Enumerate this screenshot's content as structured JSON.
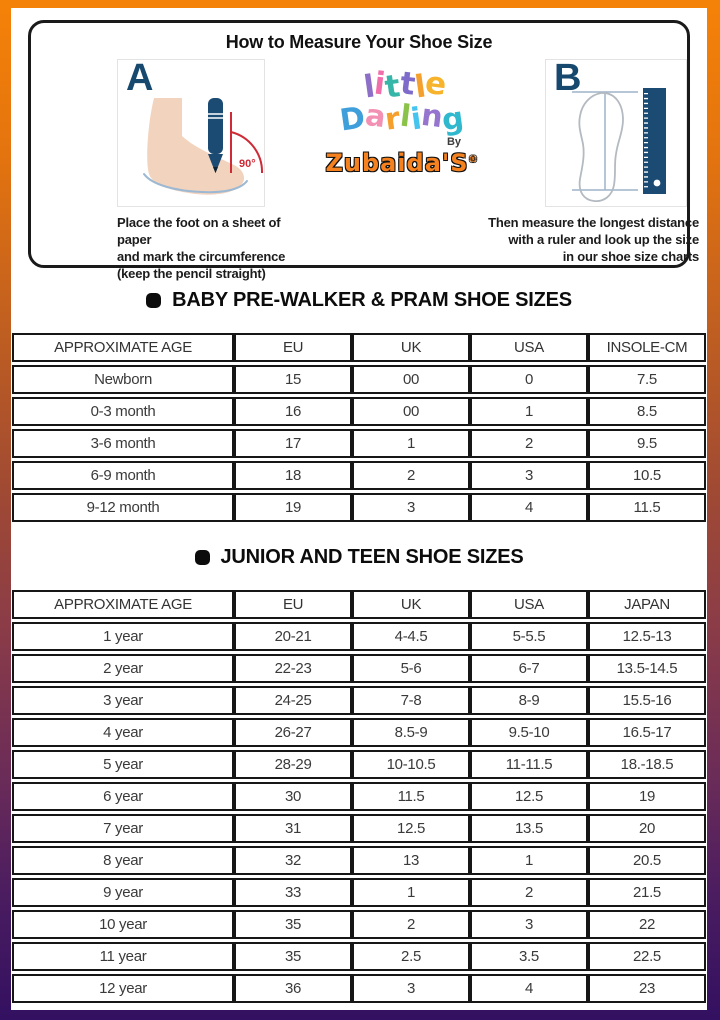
{
  "card": {
    "title": "How to Measure Your Shoe Size",
    "step_a": {
      "label": "A",
      "angle_label": "90°",
      "caption": "Place the foot on a sheet of paper\nand mark the circumference\n(keep the pencil straight)"
    },
    "step_b": {
      "label": "B",
      "caption": "Then measure the longest distance\nwith a ruler and look up the size\nin our shoe size charts"
    },
    "logo": {
      "little": [
        {
          "ch": "l",
          "c": "#8E6FC8"
        },
        {
          "ch": "i",
          "c": "#F06EA9"
        },
        {
          "ch": "t",
          "c": "#35B6A8"
        },
        {
          "ch": "t",
          "c": "#7F6BC9"
        },
        {
          "ch": "l",
          "c": "#F5A02C"
        },
        {
          "ch": "e",
          "c": "#F7B32B"
        }
      ],
      "darling": [
        {
          "ch": "D",
          "c": "#3F9FDA"
        },
        {
          "ch": "a",
          "c": "#F291B4"
        },
        {
          "ch": "r",
          "c": "#F5A02C"
        },
        {
          "ch": "l",
          "c": "#8BC34A"
        },
        {
          "ch": "i",
          "c": "#45C4F0"
        },
        {
          "ch": "n",
          "c": "#9575CD"
        },
        {
          "ch": "g",
          "c": "#2FB8CE"
        }
      ],
      "by": "By",
      "brand": "Zubaida'S",
      "reg": "®"
    }
  },
  "tables": [
    {
      "title": "BABY PRE-WALKER & PRAM SHOE SIZES",
      "headers": [
        "APPROXIMATE AGE",
        "EU",
        "UK",
        "USA",
        "INSOLE-CM"
      ],
      "rows": [
        [
          "Newborn",
          "15",
          "00",
          "0",
          "7.5"
        ],
        [
          "0-3 month",
          "16",
          "00",
          "1",
          "8.5"
        ],
        [
          "3-6 month",
          "17",
          "1",
          "2",
          "9.5"
        ],
        [
          "6-9 month",
          "18",
          "2",
          "3",
          "10.5"
        ],
        [
          "9-12 month",
          "19",
          "3",
          "4",
          "11.5"
        ]
      ]
    },
    {
      "title": "JUNIOR AND TEEN SHOE SIZES",
      "headers": [
        "APPROXIMATE AGE",
        "EU",
        "UK",
        "USA",
        "JAPAN"
      ],
      "rows": [
        [
          "1 year",
          "20-21",
          "4-4.5",
          "5-5.5",
          "12.5-13"
        ],
        [
          "2 year",
          "22-23",
          "5-6",
          "6-7",
          "13.5-14.5"
        ],
        [
          "3 year",
          "24-25",
          "7-8",
          "8-9",
          "15.5-16"
        ],
        [
          "4 year",
          "26-27",
          "8.5-9",
          "9.5-10",
          "16.5-17"
        ],
        [
          "5 year",
          "28-29",
          "10-10.5",
          "11-11.5",
          "18.-18.5"
        ],
        [
          "6 year",
          "30",
          "11.5",
          "12.5",
          "19"
        ],
        [
          "7 year",
          "31",
          "12.5",
          "13.5",
          "20"
        ],
        [
          "8 year",
          "32",
          "13",
          "1",
          "20.5"
        ],
        [
          "9 year",
          "33",
          "1",
          "2",
          "21.5"
        ],
        [
          "10 year",
          "35",
          "2",
          "3",
          "22"
        ],
        [
          "11 year",
          "35",
          "2.5",
          "3.5",
          "22.5"
        ],
        [
          "12 year",
          "36",
          "3",
          "4",
          "23"
        ]
      ]
    }
  ],
  "colors": {
    "brand_orange": "#F5821F",
    "navy": "#17496F",
    "annotation_red": "#CE2B37",
    "frame_gradient_top": "#F58208",
    "frame_gradient_mid": "#9A4733",
    "frame_gradient_bottom": "#331061"
  }
}
